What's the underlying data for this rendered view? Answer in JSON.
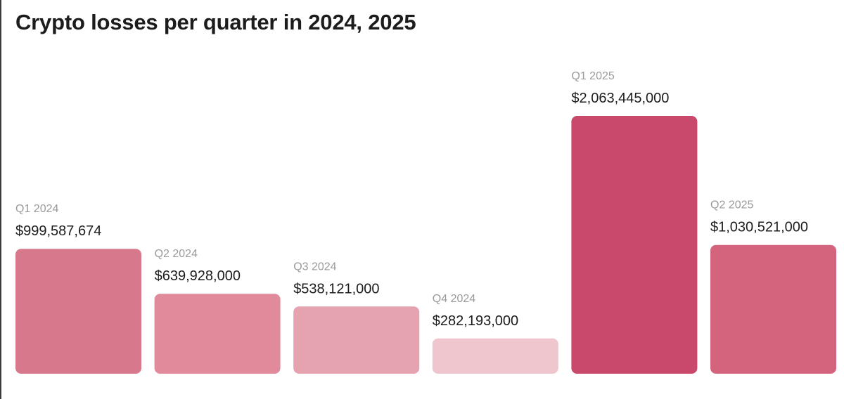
{
  "chart_data": {
    "type": "bar",
    "title": "Crypto losses per quarter in 2024, 2025",
    "xlabel": "",
    "ylabel": "",
    "ylim": [
      0,
      2063445000
    ],
    "grid": false,
    "categories": [
      "Q1 2024",
      "Q2 2024",
      "Q3 2024",
      "Q4 2024",
      "Q1 2025",
      "Q2 2025"
    ],
    "values": [
      999587674,
      639928000,
      538121000,
      282193000,
      2063445000,
      1030521000
    ],
    "value_labels": [
      "$999,587,674",
      "$639,928,000",
      "$538,121,000",
      "$282,193,000",
      "$2,063,445,000",
      "$1,030,521,000"
    ],
    "colors": [
      "#d8788d",
      "#e08a9c",
      "#e5a3b0",
      "#efc6ce",
      "#c8496a",
      "#d4637d"
    ]
  }
}
